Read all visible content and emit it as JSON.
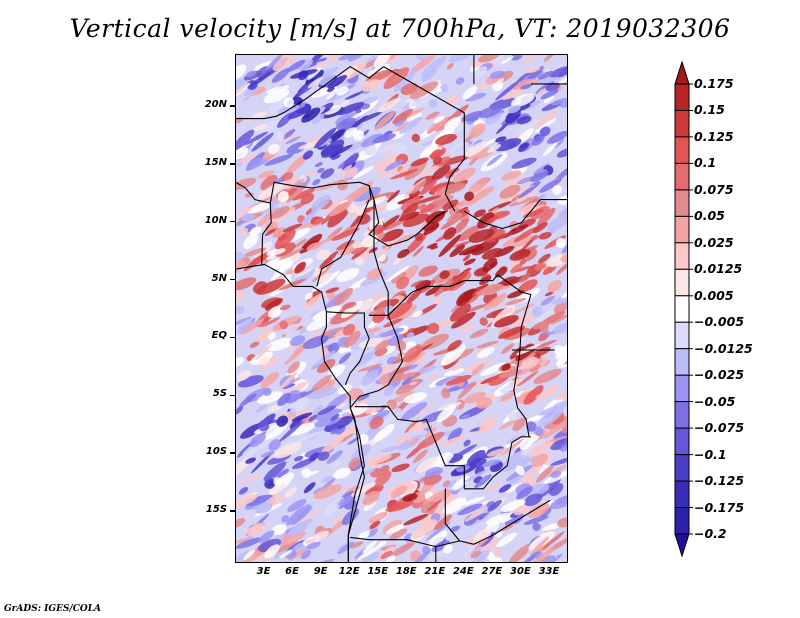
{
  "title": "Vertical velocity [m/s] at 700hPa, VT: 2019032306",
  "footer": "GrADS: IGES/COLA",
  "map": {
    "type": "filled-contour",
    "variable": "Vertical velocity",
    "units": "m/s",
    "level": "700hPa",
    "valid_time": "2019032306",
    "lon_range": [
      0,
      35
    ],
    "lat_range": [
      -19.5,
      24.5
    ],
    "y_axis_labels": [
      "20N",
      "15N",
      "10N",
      "5N",
      "EQ",
      "5S",
      "10S",
      "15S"
    ],
    "y_axis_values": [
      20,
      15,
      10,
      5,
      0,
      -5,
      -10,
      -15
    ],
    "x_axis_labels": [
      "3E",
      "6E",
      "9E",
      "12E",
      "15E",
      "18E",
      "21E",
      "24E",
      "27E",
      "30E",
      "33E"
    ],
    "x_axis_values": [
      3,
      6,
      9,
      12,
      15,
      18,
      21,
      24,
      27,
      30,
      33
    ]
  },
  "colorbar": {
    "levels": [
      "0.175",
      "0.15",
      "0.125",
      "0.1",
      "0.075",
      "0.05",
      "0.025",
      "0.0125",
      "0.005",
      "-0.005",
      "-0.0125",
      "-0.025",
      "-0.05",
      "-0.075",
      "-0.1",
      "-0.125",
      "-0.175",
      "-0.2"
    ],
    "colors": [
      "#a8161a",
      "#b82326",
      "#cc3a3c",
      "#e35455",
      "#e46c6e",
      "#e38a8c",
      "#f3a3a3",
      "#fbc8c8",
      "#fde6e6",
      "#ffffff",
      "#dcdcfa",
      "#bcbcfa",
      "#9b94f5",
      "#7c72e6",
      "#6557d9",
      "#4a3dc9",
      "#3a2cbb",
      "#2c21a8",
      "#220ea0"
    ]
  },
  "chart_data": {
    "type": "heatmap",
    "title": "Vertical velocity [m/s] at 700hPa, VT: 2019032306",
    "xlabel": "",
    "ylabel": "",
    "x_ticks": [
      "3E",
      "6E",
      "9E",
      "12E",
      "15E",
      "18E",
      "21E",
      "24E",
      "27E",
      "30E",
      "33E"
    ],
    "y_ticks": [
      "20N",
      "15N",
      "10N",
      "5N",
      "EQ",
      "5S",
      "10S",
      "15S"
    ],
    "xlim": [
      0,
      35
    ],
    "ylim": [
      -19.5,
      24.5
    ],
    "colorbar_levels": [
      -0.2,
      -0.175,
      -0.125,
      -0.1,
      -0.075,
      -0.05,
      -0.025,
      -0.0125,
      -0.005,
      0.005,
      0.0125,
      0.025,
      0.05,
      0.075,
      0.1,
      0.125,
      0.15,
      0.175
    ],
    "legend": "right"
  }
}
